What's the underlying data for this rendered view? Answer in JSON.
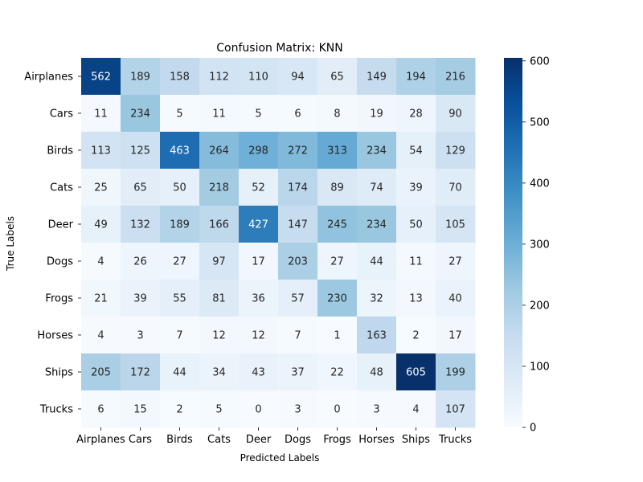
{
  "chart_data": {
    "type": "heatmap",
    "title": "Confusion Matrix: KNN",
    "xlabel": "Predicted Labels",
    "ylabel": "True Labels",
    "x_categories": [
      "Airplanes",
      "Cars",
      "Birds",
      "Cats",
      "Deer",
      "Dogs",
      "Frogs",
      "Horses",
      "Ships",
      "Trucks"
    ],
    "y_categories": [
      "Airplanes",
      "Cars",
      "Birds",
      "Cats",
      "Deer",
      "Dogs",
      "Frogs",
      "Horses",
      "Ships",
      "Trucks"
    ],
    "values": [
      [
        562,
        189,
        158,
        112,
        110,
        94,
        65,
        149,
        194,
        216
      ],
      [
        11,
        234,
        5,
        11,
        5,
        6,
        8,
        19,
        28,
        90
      ],
      [
        113,
        125,
        463,
        264,
        298,
        272,
        313,
        234,
        54,
        129
      ],
      [
        25,
        65,
        50,
        218,
        52,
        174,
        89,
        74,
        39,
        70
      ],
      [
        49,
        132,
        189,
        166,
        427,
        147,
        245,
        234,
        50,
        105
      ],
      [
        4,
        26,
        27,
        97,
        17,
        203,
        27,
        44,
        11,
        27
      ],
      [
        21,
        39,
        55,
        81,
        36,
        57,
        230,
        32,
        13,
        40
      ],
      [
        4,
        3,
        7,
        12,
        12,
        7,
        1,
        163,
        2,
        17
      ],
      [
        205,
        172,
        44,
        34,
        43,
        37,
        22,
        48,
        605,
        199
      ],
      [
        6,
        15,
        2,
        5,
        0,
        3,
        0,
        3,
        4,
        107
      ]
    ],
    "colorbar": {
      "range": [
        0,
        605
      ],
      "ticks": [
        0,
        100,
        200,
        300,
        400,
        500,
        600
      ],
      "colormap": "Blues"
    }
  }
}
